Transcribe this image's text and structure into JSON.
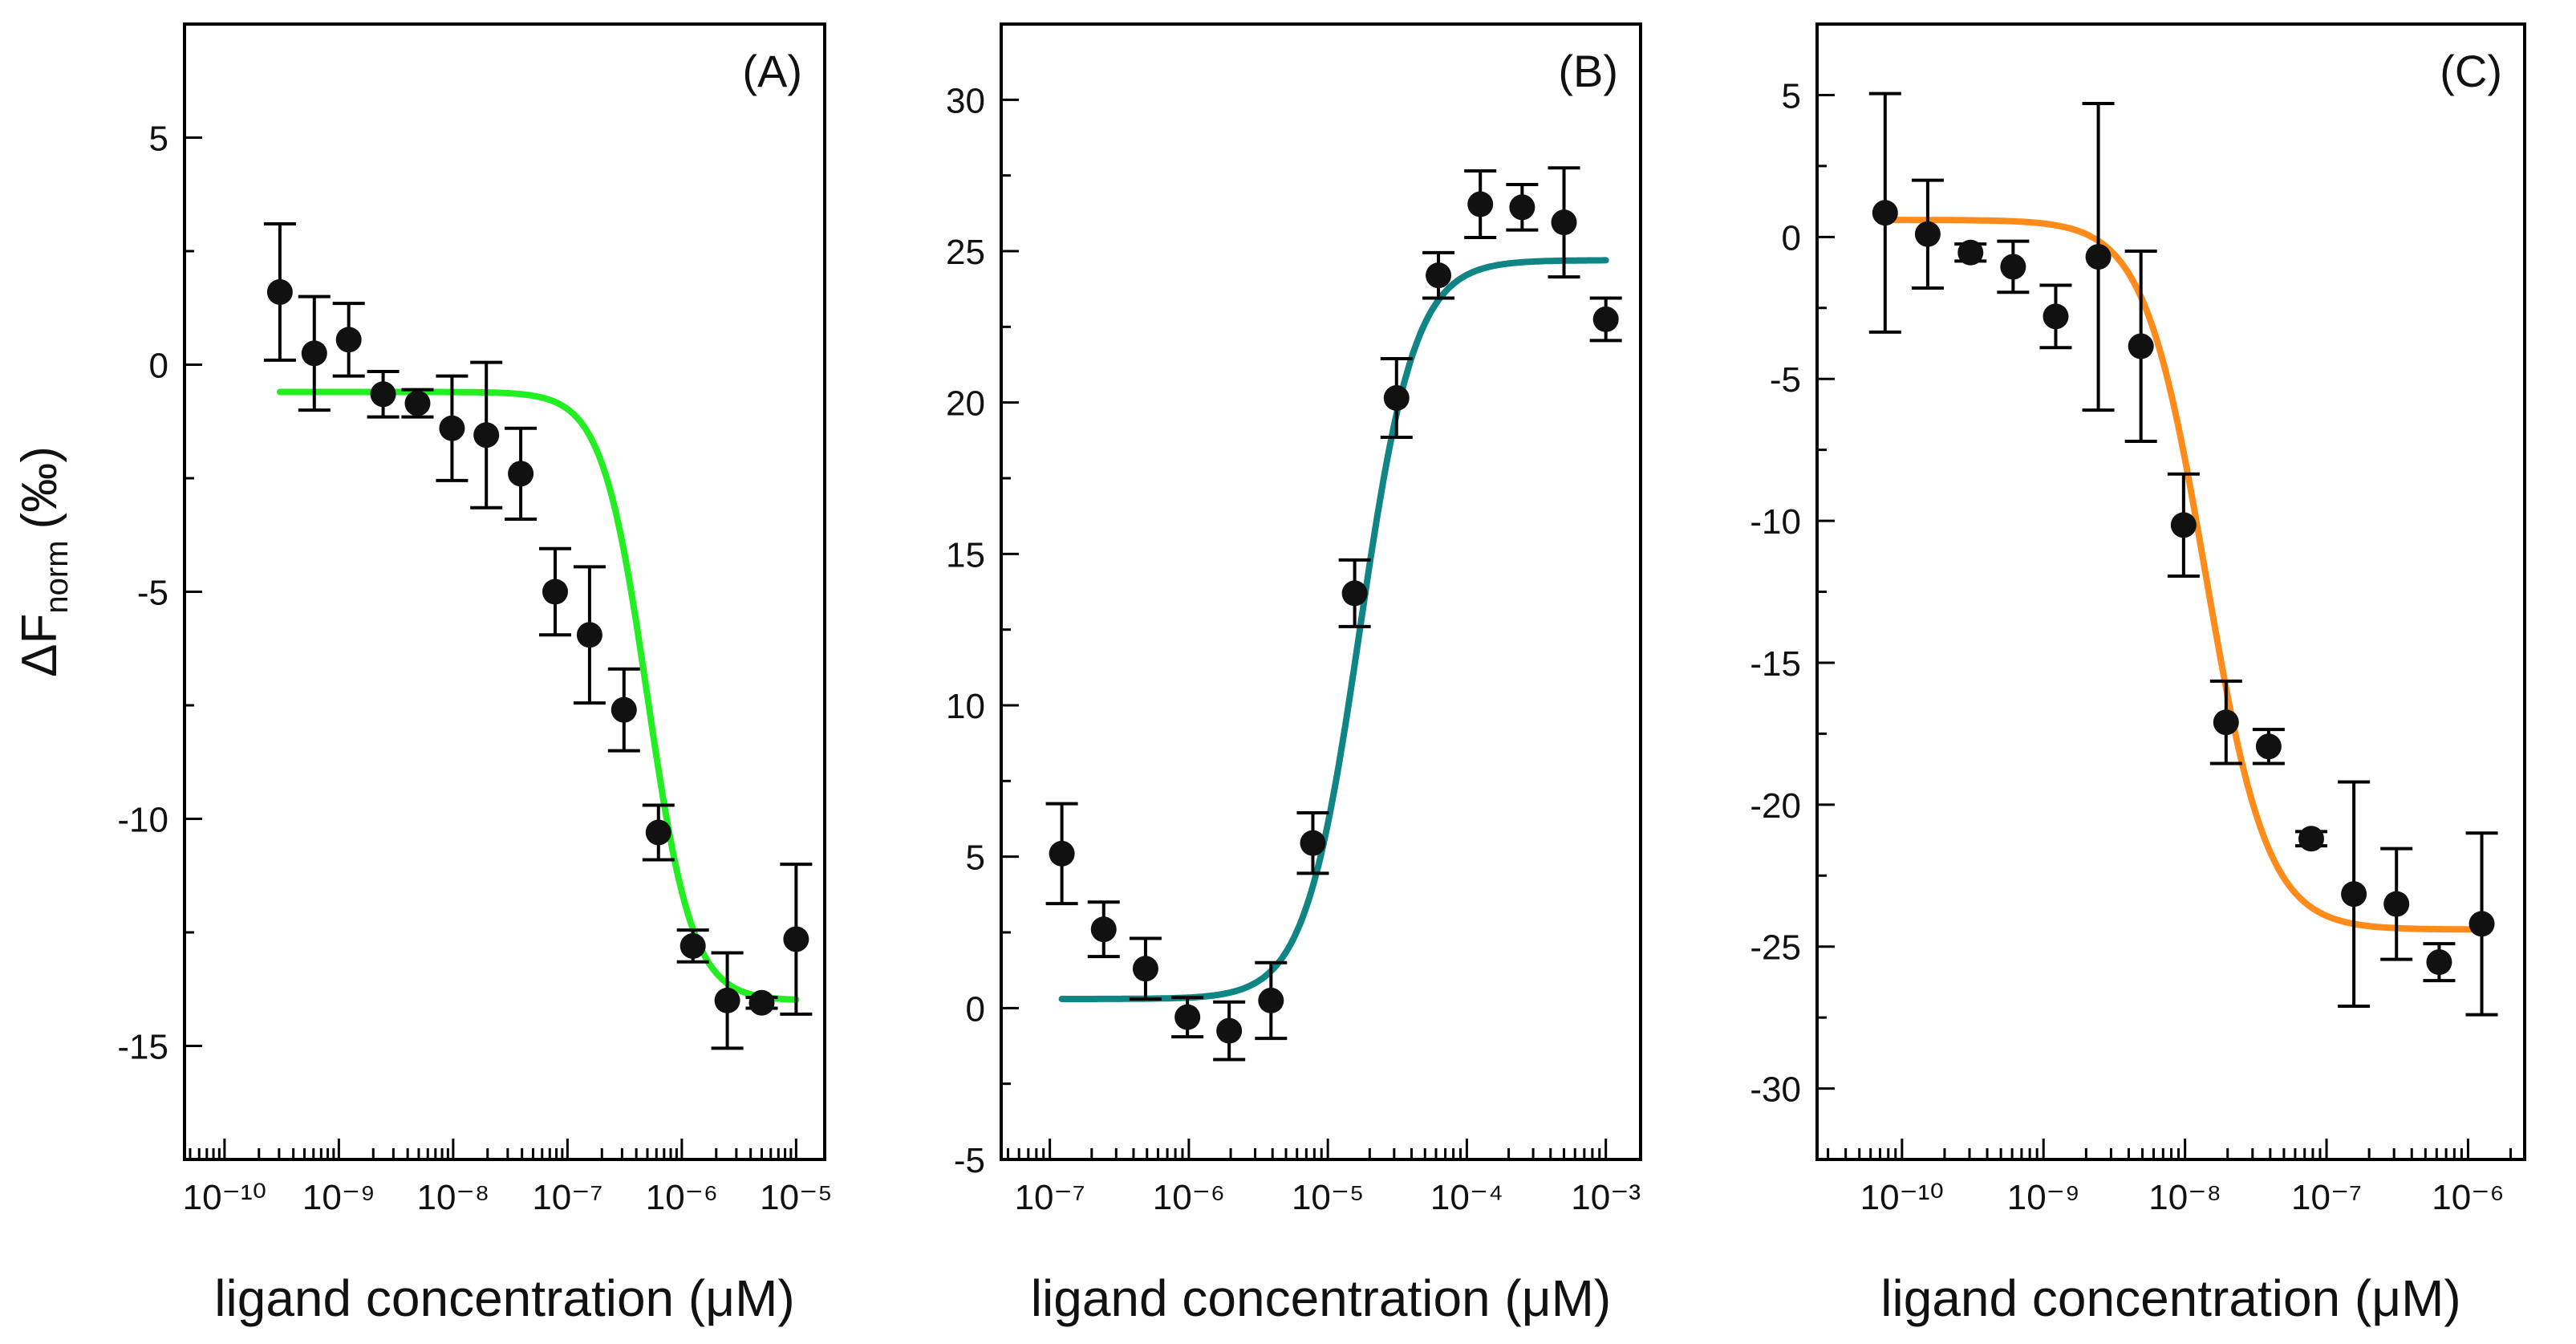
{
  "figure": {
    "ylabel": {
      "main": "ΔF",
      "sub": "norm",
      "unit": "(‰)"
    }
  },
  "chart_data": [
    {
      "type": "scatter",
      "title": "(A)",
      "xlabel": "ligand concentration (μM)",
      "ylabel": "ΔF norm (‰)",
      "x_scale": "log",
      "xlim_exp": [
        -10.35,
        -4.75
      ],
      "ylim": [
        -17.5,
        7.5
      ],
      "x_tick_exps": [
        -10,
        -9,
        -8,
        -7,
        -6,
        -5
      ],
      "y_ticks": [
        -15,
        -10,
        -5,
        0,
        5
      ],
      "fit_color": "#22ee22",
      "fit": {
        "bottom": -0.6,
        "top": -14.0,
        "ec50": 5e-07,
        "hill": 2.2
      },
      "points": [
        {
          "x": 3.05e-10,
          "y": 1.6,
          "err": 1.5
        },
        {
          "x": 6.1e-10,
          "y": 0.25,
          "err": 1.25
        },
        {
          "x": 1.22e-09,
          "y": 0.55,
          "err": 0.8
        },
        {
          "x": 2.44e-09,
          "y": -0.65,
          "err": 0.5
        },
        {
          "x": 4.88e-09,
          "y": -0.85,
          "err": 0.3
        },
        {
          "x": 9.77e-09,
          "y": -1.4,
          "err": 1.15
        },
        {
          "x": 1.95e-08,
          "y": -1.55,
          "err": 1.6
        },
        {
          "x": 3.9e-08,
          "y": -2.4,
          "err": 1.0
        },
        {
          "x": 7.8e-08,
          "y": -5.0,
          "err": 0.95
        },
        {
          "x": 1.56e-07,
          "y": -5.95,
          "err": 1.5
        },
        {
          "x": 3.12e-07,
          "y": -7.6,
          "err": 0.9
        },
        {
          "x": 6.25e-07,
          "y": -10.3,
          "err": 0.6
        },
        {
          "x": 1.25e-06,
          "y": -12.8,
          "err": 0.35
        },
        {
          "x": 2.5e-06,
          "y": -14.0,
          "err": 1.05
        },
        {
          "x": 5e-06,
          "y": -14.05,
          "err": 0.12
        },
        {
          "x": 1e-05,
          "y": -12.65,
          "err": 1.65
        }
      ]
    },
    {
      "type": "scatter",
      "title": "(B)",
      "xlabel": "ligand concentration (μM)",
      "ylabel": "ΔF norm (‰)",
      "x_scale": "log",
      "xlim_exp": [
        -7.35,
        -2.75
      ],
      "ylim": [
        -5,
        32.5
      ],
      "x_tick_exps": [
        -7,
        -6,
        -5,
        -4,
        -3
      ],
      "y_ticks": [
        -5,
        0,
        5,
        10,
        15,
        20,
        25,
        30
      ],
      "fit_color": "#108585",
      "fit": {
        "bottom": 0.3,
        "top": 24.7,
        "ec50": 1.7e-05,
        "hill": 2.2
      },
      "points": [
        {
          "x": 1.22e-07,
          "y": 5.1,
          "err": 1.65
        },
        {
          "x": 2.44e-07,
          "y": 2.6,
          "err": 0.9
        },
        {
          "x": 4.88e-07,
          "y": 1.3,
          "err": 1.0
        },
        {
          "x": 9.77e-07,
          "y": -0.3,
          "err": 0.65
        },
        {
          "x": 1.95e-06,
          "y": -0.75,
          "err": 0.95
        },
        {
          "x": 3.9e-06,
          "y": 0.25,
          "err": 1.25
        },
        {
          "x": 7.8e-06,
          "y": 5.45,
          "err": 1.0
        },
        {
          "x": 1.56e-05,
          "y": 13.7,
          "err": 1.1
        },
        {
          "x": 3.12e-05,
          "y": 20.15,
          "err": 1.3
        },
        {
          "x": 6.25e-05,
          "y": 24.2,
          "err": 0.75
        },
        {
          "x": 0.000125,
          "y": 26.55,
          "err": 1.1
        },
        {
          "x": 0.00025,
          "y": 26.45,
          "err": 0.75
        },
        {
          "x": 0.0005,
          "y": 25.95,
          "err": 1.8
        },
        {
          "x": 0.001,
          "y": 22.75,
          "err": 0.7
        }
      ]
    },
    {
      "type": "scatter",
      "title": "(C)",
      "xlabel": "ligand concentration (μM)",
      "ylabel": "ΔF norm (‰)",
      "x_scale": "log",
      "xlim_exp": [
        -10.6,
        -5.6
      ],
      "ylim": [
        -32.5,
        7.5
      ],
      "x_tick_exps": [
        -10,
        -9,
        -8,
        -7,
        -6
      ],
      "y_ticks": [
        -30,
        -25,
        -20,
        -15,
        -10,
        -5,
        0,
        5
      ],
      "fit_color": "#ff8c1a",
      "fit": {
        "bottom": 0.6,
        "top": -24.4,
        "ec50": 1.4e-08,
        "hill": 2.0
      },
      "points": [
        {
          "x": 7.6e-11,
          "y": 0.85,
          "err": 4.2
        },
        {
          "x": 1.52e-10,
          "y": 0.1,
          "err": 1.9
        },
        {
          "x": 3.05e-10,
          "y": -0.55,
          "err": 0.3
        },
        {
          "x": 6.1e-10,
          "y": -1.05,
          "err": 0.9
        },
        {
          "x": 1.22e-09,
          "y": -2.8,
          "err": 1.1
        },
        {
          "x": 2.44e-09,
          "y": -0.7,
          "err": 5.4
        },
        {
          "x": 4.88e-09,
          "y": -3.85,
          "err": 3.35
        },
        {
          "x": 9.77e-09,
          "y": -10.15,
          "err": 1.8
        },
        {
          "x": 1.95e-08,
          "y": -17.1,
          "err": 1.45
        },
        {
          "x": 3.9e-08,
          "y": -17.95,
          "err": 0.6
        },
        {
          "x": 7.8e-08,
          "y": -21.2,
          "err": 0.25
        },
        {
          "x": 1.56e-07,
          "y": -23.15,
          "err": 3.95
        },
        {
          "x": 3.12e-07,
          "y": -23.5,
          "err": 1.95
        },
        {
          "x": 6.25e-07,
          "y": -25.55,
          "err": 0.65
        },
        {
          "x": 1.25e-06,
          "y": -24.2,
          "err": 3.2
        }
      ]
    }
  ]
}
